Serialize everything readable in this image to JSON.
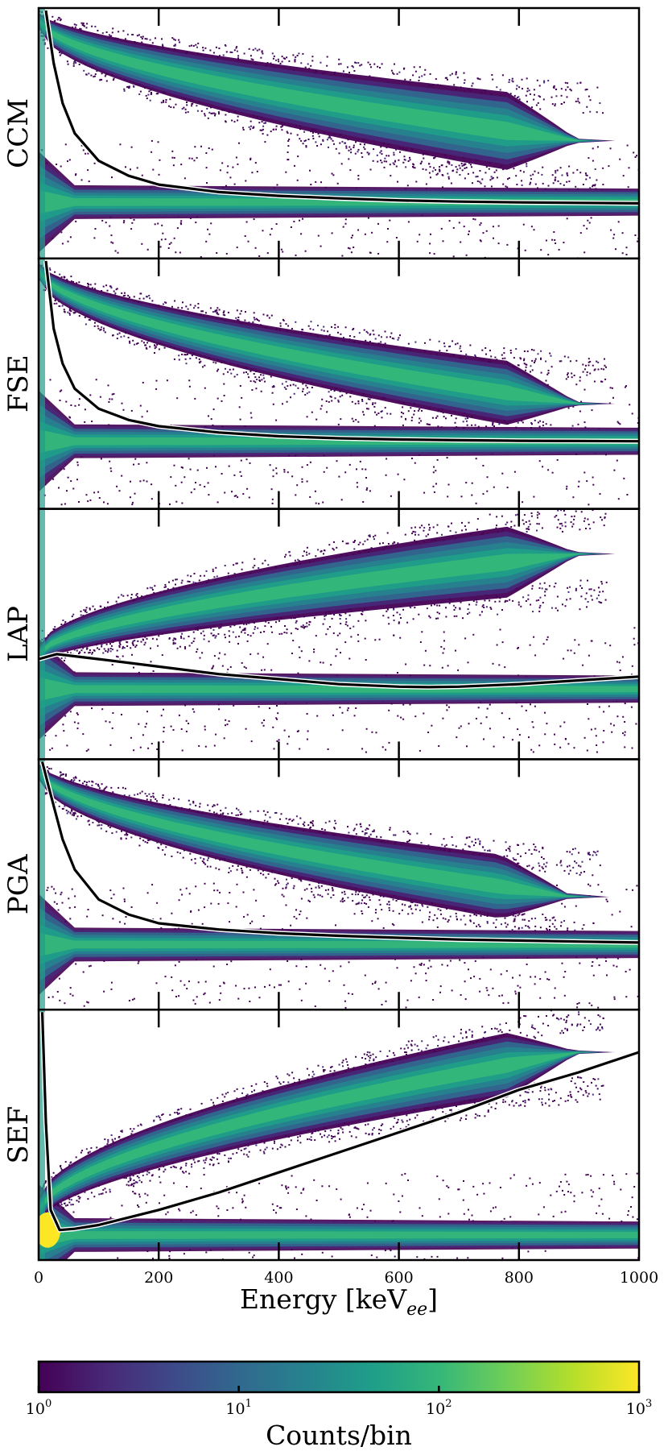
{
  "chart_data": {
    "type": "heatmap",
    "panels": [
      {
        "name": "CCM",
        "shape": "decay",
        "band_center": [
          0.95,
          0.47
        ],
        "band_halfwidth": [
          0.02,
          0.11
        ],
        "band_end": 900,
        "floor": 0.225,
        "curve": [
          [
            12,
            0.99
          ],
          [
            25,
            0.78
          ],
          [
            40,
            0.62
          ],
          [
            60,
            0.5
          ],
          [
            100,
            0.39
          ],
          [
            150,
            0.33
          ],
          [
            200,
            0.295
          ],
          [
            300,
            0.265
          ],
          [
            400,
            0.25
          ],
          [
            500,
            0.24
          ],
          [
            600,
            0.232
          ],
          [
            700,
            0.227
          ],
          [
            800,
            0.224
          ],
          [
            900,
            0.222
          ],
          [
            1000,
            0.22
          ]
        ]
      },
      {
        "name": "FSE",
        "shape": "decay",
        "band_center": [
          0.95,
          0.42
        ],
        "band_halfwidth": [
          0.02,
          0.09
        ],
        "band_end": 900,
        "floor": 0.27,
        "curve": [
          [
            12,
            0.99
          ],
          [
            25,
            0.72
          ],
          [
            40,
            0.58
          ],
          [
            60,
            0.48
          ],
          [
            100,
            0.4
          ],
          [
            150,
            0.355
          ],
          [
            200,
            0.33
          ],
          [
            300,
            0.305
          ],
          [
            400,
            0.29
          ],
          [
            500,
            0.282
          ],
          [
            600,
            0.277
          ],
          [
            700,
            0.274
          ],
          [
            800,
            0.272
          ],
          [
            900,
            0.271
          ],
          [
            1000,
            0.27
          ]
        ]
      },
      {
        "name": "LAP",
        "shape": "rise",
        "band_center": [
          0.42,
          0.82
        ],
        "band_halfwidth": [
          0.02,
          0.1
        ],
        "band_end": 900,
        "floor": 0.28,
        "curve": [
          [
            0,
            0.4
          ],
          [
            30,
            0.42
          ],
          [
            100,
            0.4
          ],
          [
            200,
            0.37
          ],
          [
            300,
            0.34
          ],
          [
            400,
            0.32
          ],
          [
            500,
            0.3
          ],
          [
            600,
            0.29
          ],
          [
            650,
            0.288
          ],
          [
            700,
            0.29
          ],
          [
            800,
            0.3
          ],
          [
            900,
            0.315
          ],
          [
            1000,
            0.33
          ]
        ]
      },
      {
        "name": "PGA",
        "shape": "decay",
        "band_center": [
          0.95,
          0.45
        ],
        "band_halfwidth": [
          0.02,
          0.09
        ],
        "band_end": 890,
        "floor": 0.26,
        "curve": [
          [
            6,
            0.99
          ],
          [
            20,
            0.86
          ],
          [
            40,
            0.68
          ],
          [
            60,
            0.56
          ],
          [
            100,
            0.44
          ],
          [
            150,
            0.38
          ],
          [
            200,
            0.345
          ],
          [
            300,
            0.32
          ],
          [
            400,
            0.305
          ],
          [
            500,
            0.295
          ],
          [
            600,
            0.287
          ],
          [
            700,
            0.28
          ],
          [
            800,
            0.276
          ],
          [
            900,
            0.272
          ],
          [
            1000,
            0.268
          ]
        ]
      },
      {
        "name": "SEF",
        "shape": "rise",
        "band_center": [
          0.2,
          0.83
        ],
        "band_halfwidth": [
          0.03,
          0.09
        ],
        "band_end": 900,
        "floor": 0.1,
        "curve": [
          [
            6,
            0.99
          ],
          [
            12,
            0.55
          ],
          [
            20,
            0.2
          ],
          [
            35,
            0.12
          ],
          [
            60,
            0.125
          ],
          [
            100,
            0.14
          ],
          [
            200,
            0.2
          ],
          [
            300,
            0.27
          ],
          [
            400,
            0.35
          ],
          [
            500,
            0.43
          ],
          [
            600,
            0.51
          ],
          [
            700,
            0.59
          ],
          [
            800,
            0.68
          ],
          [
            900,
            0.75
          ],
          [
            1000,
            0.83
          ]
        ]
      }
    ],
    "xlabel": "Energy [keV",
    "xlabel_sub": "ee",
    "xlabel_close": "]",
    "xlim": [
      0,
      1000
    ],
    "xticks": [
      0,
      200,
      400,
      600,
      800,
      1000
    ],
    "colorbar": {
      "label": "Counts/bin",
      "scale": "log",
      "range": [
        1,
        1000
      ],
      "ticks": [
        {
          "base": "10",
          "exp": "0",
          "value": 1
        },
        {
          "base": "10",
          "exp": "1",
          "value": 10
        },
        {
          "base": "10",
          "exp": "2",
          "value": 100
        },
        {
          "base": "10",
          "exp": "3",
          "value": 1000
        }
      ],
      "colormap": "viridis",
      "colors": [
        "#440154",
        "#482878",
        "#3e4989",
        "#31688e",
        "#26828e",
        "#1f9e89",
        "#35b779",
        "#6ece58",
        "#b5de2b",
        "#fde725"
      ]
    },
    "curve_color": "#000000",
    "curve_halo_color": "#ffffff"
  }
}
